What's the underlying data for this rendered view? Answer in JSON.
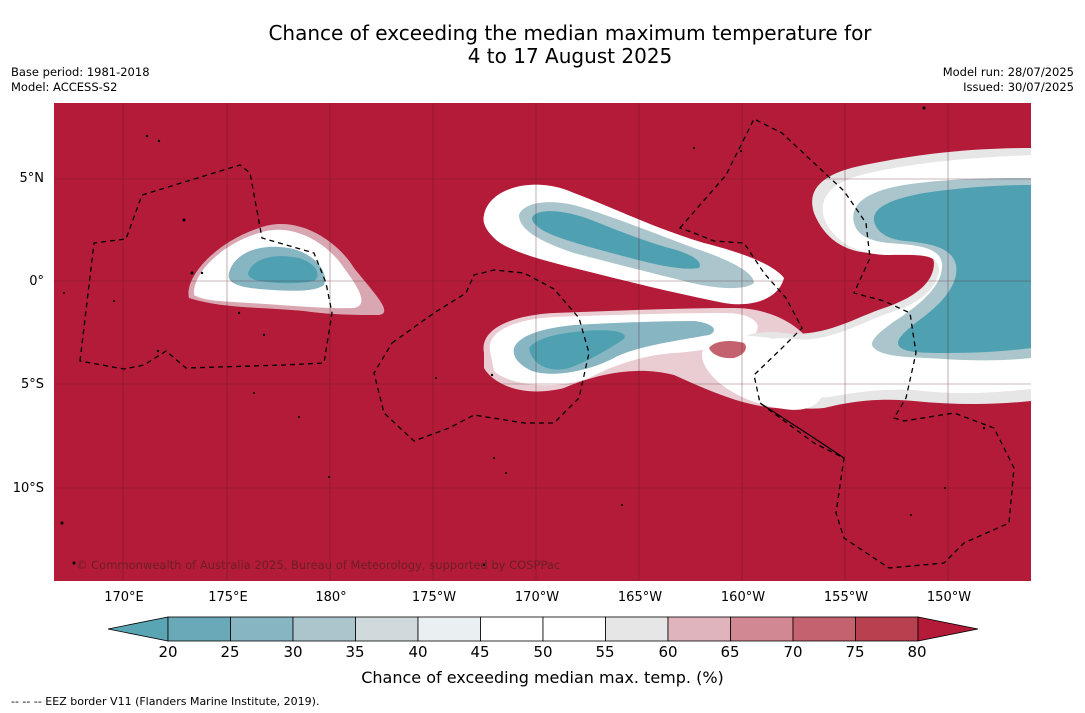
{
  "title": {
    "line1": "Chance of exceeding the median maximum temperature for",
    "line2": "4 to 17 August 2025"
  },
  "meta": {
    "base_period": "Base period: 1981-2018",
    "model": "Model: ACCESS-S2",
    "model_run": "Model run: 28/07/2025",
    "issued": "Issued: 30/07/2025"
  },
  "map": {
    "copyright": "© Commonwealth of Australia 2025, Bureau of Meteorology, supported by COSPPac",
    "lat_labels": [
      "5°N",
      "0°",
      "5°S",
      "10°S"
    ],
    "lon_labels": [
      "170°E",
      "175°E",
      "180°",
      "175°W",
      "170°W",
      "165°W",
      "160°W",
      "155°W",
      "150°W"
    ],
    "background_color": "#b31b38"
  },
  "colorbar": {
    "ticks": [
      "20",
      "25",
      "30",
      "35",
      "40",
      "45",
      "50",
      "55",
      "60",
      "65",
      "70",
      "75",
      "80"
    ],
    "colors": [
      "#5aa5b4",
      "#6aaab8",
      "#87b6c2",
      "#aac5cc",
      "#d0d9dc",
      "#eaeff1",
      "#ffffff",
      "#ffffff",
      "#e6e6e6",
      "#dfb4bc",
      "#d28893",
      "#c4626f",
      "#b8414f",
      "#b31b38"
    ],
    "label": "Chance of exceeding median max. temp. (%)"
  },
  "legend": {
    "eez_line": "--  --  -- EEZ border V11 (Flanders Marine Institute, 2019)."
  }
}
